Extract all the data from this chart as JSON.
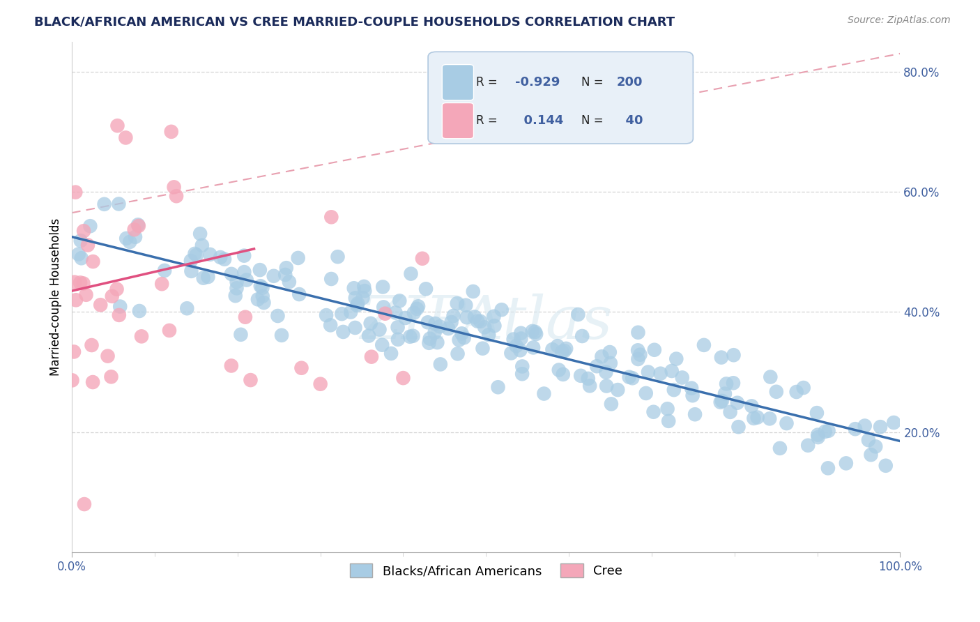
{
  "title": "BLACK/AFRICAN AMERICAN VS CREE MARRIED-COUPLE HOUSEHOLDS CORRELATION CHART",
  "source": "Source: ZipAtlas.com",
  "ylabel": "Married-couple Households",
  "xlim": [
    0.0,
    1.0
  ],
  "ylim": [
    0.0,
    0.85
  ],
  "ytick_vals": [
    0.2,
    0.4,
    0.6,
    0.8
  ],
  "ytick_labels": [
    "20.0%",
    "40.0%",
    "60.0%",
    "80.0%"
  ],
  "xtick_vals": [
    0.0,
    1.0
  ],
  "xtick_labels": [
    "0.0%",
    "100.0%"
  ],
  "watermark_text": "ZIPAtlas",
  "blue_color": "#a8cce4",
  "pink_color": "#f4a7b9",
  "blue_line_color": "#3a6fad",
  "pink_line_color": "#e05080",
  "diag_color": "#e8a0b0",
  "tick_color": "#4060a0",
  "background_color": "#ffffff",
  "blue_n": 200,
  "pink_n": 40,
  "blue_r": -0.929,
  "pink_r": 0.144,
  "legend_box_color": "#e8f0f8",
  "legend_border_color": "#b0c8e0"
}
